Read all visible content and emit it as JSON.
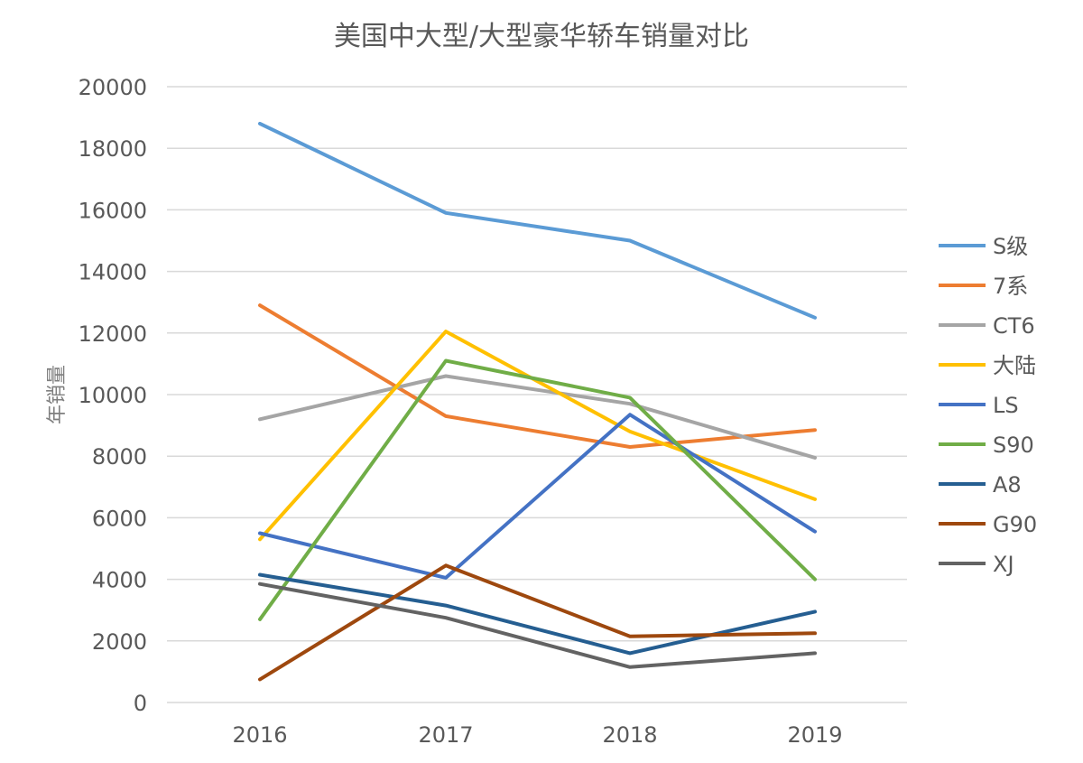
{
  "chart_data": {
    "type": "line",
    "title": "美国中大型/大型豪华轿车销量对比",
    "xlabel": "",
    "ylabel": "年销量",
    "categories": [
      "2016",
      "2017",
      "2018",
      "2019"
    ],
    "ylim": [
      0,
      20000
    ],
    "yticks": [
      0,
      2000,
      4000,
      6000,
      8000,
      10000,
      12000,
      14000,
      16000,
      18000,
      20000
    ],
    "grid": true,
    "legend": "right",
    "series": [
      {
        "name": "S级",
        "color": "#5b9bd5",
        "values": [
          18800,
          15900,
          15000,
          12500
        ]
      },
      {
        "name": "7系",
        "color": "#ed7d31",
        "values": [
          12900,
          9300,
          8300,
          8850
        ]
      },
      {
        "name": "CT6",
        "color": "#a5a5a5",
        "values": [
          9200,
          10600,
          9700,
          7950
        ]
      },
      {
        "name": "大陆",
        "color": "#ffc000",
        "values": [
          5300,
          12050,
          8800,
          6600
        ]
      },
      {
        "name": "LS",
        "color": "#4472c4",
        "values": [
          5500,
          4050,
          9350,
          5550
        ]
      },
      {
        "name": "S90",
        "color": "#70ad47",
        "values": [
          2700,
          11100,
          9900,
          4000
        ]
      },
      {
        "name": "A8",
        "color": "#255e91",
        "values": [
          4150,
          3150,
          1600,
          2950
        ]
      },
      {
        "name": "G90",
        "color": "#9e480e",
        "values": [
          750,
          4450,
          2150,
          2250
        ]
      },
      {
        "name": "XJ",
        "color": "#636363",
        "values": [
          3850,
          2750,
          1150,
          1600
        ]
      }
    ]
  }
}
